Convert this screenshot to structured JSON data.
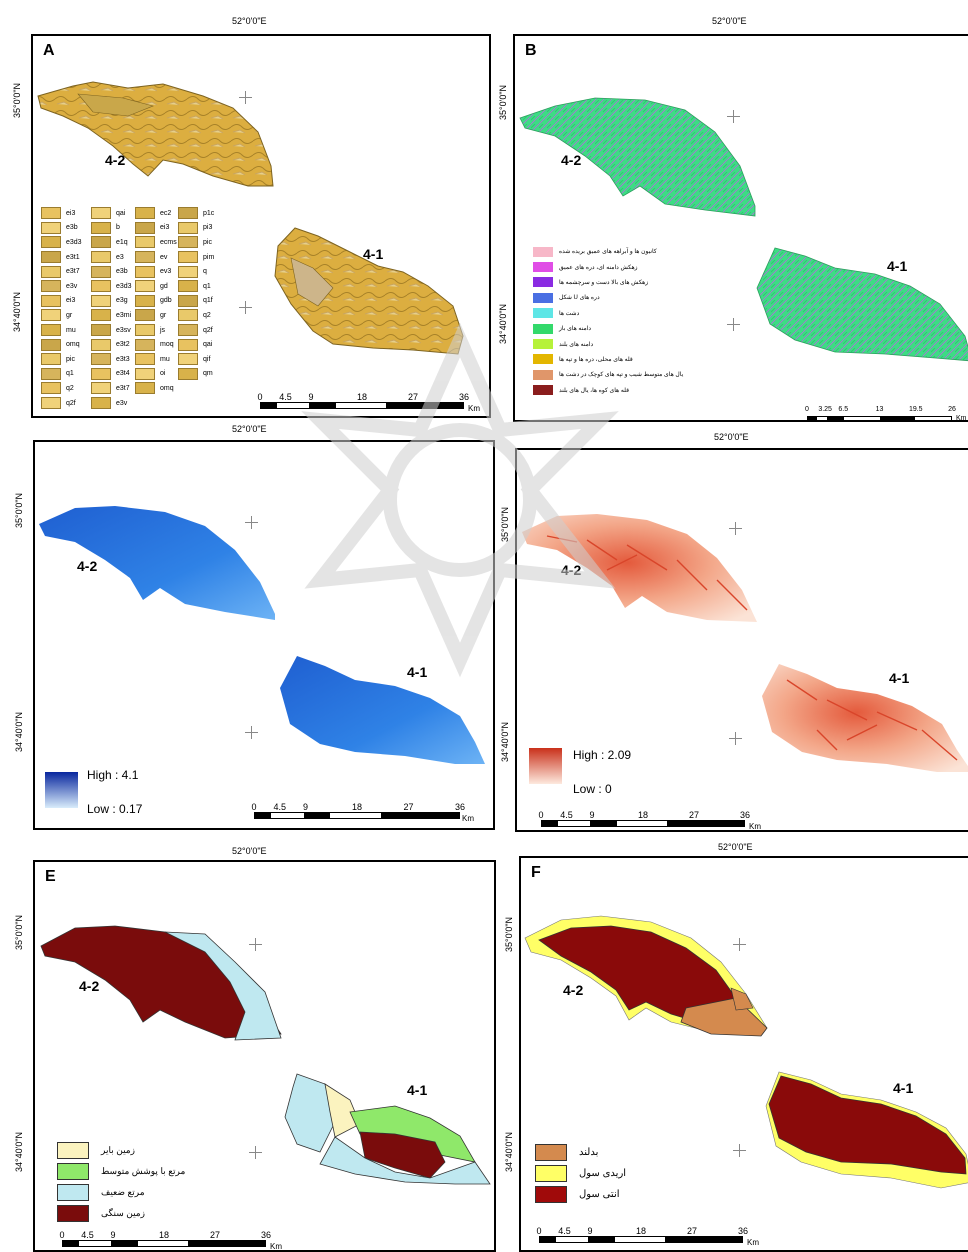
{
  "colors": {
    "geology_fill": "#d9a93a",
    "geology_line": "#8a6d1e",
    "landform_fill": "#3ddc84",
    "water_fill": "#2f7bd9",
    "fault_fill": "#f3c6b0",
    "fault_line": "#d9452a",
    "rock_land": "#7a0c0c",
    "weak_range": "#bfe8f0",
    "medium_range": "#8fe86a",
    "barren_land": "#fbf3bf",
    "entisol": "#8a0a0a",
    "aridisol": "#ffff66",
    "badland": "#d48a4e"
  },
  "axes": {
    "lon": "52°0'0\"E",
    "lat_top": "35°0'0\"N",
    "lat_bottom": "34°40'0\"N"
  },
  "zones": {
    "z42": "4-2",
    "z41": "4-1"
  },
  "panels": {
    "a": {
      "letter": "A"
    },
    "b": {
      "letter": "B"
    },
    "c": {
      "letter": ""
    },
    "d": {
      "letter": ""
    },
    "e": {
      "letter": "E"
    },
    "f": {
      "letter": "F"
    }
  },
  "scalebar_a": {
    "ticks": [
      "0",
      "4.5",
      "9",
      "18",
      "27",
      "36"
    ],
    "unit": "Km"
  },
  "scalebar_b": {
    "ticks": [
      "0",
      "3.25",
      "6.5",
      "13",
      "19.5",
      "26"
    ],
    "unit": "Km"
  },
  "geology_legend": [
    [
      "ei3",
      "e3b",
      "e3d3",
      "e3t1",
      "e3t7",
      "e3v",
      "ei3",
      "gr",
      "mu",
      "omq",
      "pic",
      "q1",
      "q2",
      "q2f"
    ],
    [
      "qai",
      "b",
      "e1q",
      "e3",
      "e3b",
      "e3d3",
      "e3g",
      "e3mi",
      "e3sv",
      "e3t2",
      "e3t3",
      "e3t4",
      "e3t7",
      "e3v"
    ],
    [
      "ec2",
      "ei3",
      "ecms",
      "ev",
      "ev3",
      "gd",
      "gdb",
      "gr",
      "js",
      "moq",
      "mu",
      "oi",
      "omq"
    ],
    [
      "p1c",
      "pi3",
      "pic",
      "pim",
      "q",
      "q1",
      "q1f",
      "q2",
      "q2f",
      "qai",
      "qif",
      "qm"
    ]
  ],
  "landform_legend": [
    {
      "label": "کانیون ها و آبراهه های عمیق بریده شده",
      "color": "#f7b7c8"
    },
    {
      "label": "زهکش دامنه ای، دره های عمیق",
      "color": "#e04de6"
    },
    {
      "label": "زهکش های بالا دست و سرچشمه ها",
      "color": "#8a2be2"
    },
    {
      "label": "شکل U دره های",
      "color": "#4a6fe3"
    },
    {
      "label": "دشت ها",
      "color": "#5ee6e6"
    },
    {
      "label": "دامنه های باز",
      "color": "#33d96b"
    },
    {
      "label": "دامنه های بلند",
      "color": "#b6f23a"
    },
    {
      "label": "قله های محلی، دره ها و تپه ها",
      "color": "#e3b600"
    },
    {
      "label": "یال های متوسط شیب و تپه های کوچک در دشت ها",
      "color": "#e0966a"
    },
    {
      "label": "قله های کوه ها، یال های بلند",
      "color": "#8a1d1d"
    }
  ],
  "water_legend": {
    "high": "High : 4.1",
    "low": "Low : 0.17"
  },
  "fault_legend": {
    "high": "High : 2.09",
    "low": "Low : 0"
  },
  "landuse_legend": [
    {
      "label": "زمین بایر",
      "color": "#fbf3bf"
    },
    {
      "label": "مرتع با پوشش متوسط",
      "color": "#8fe86a"
    },
    {
      "label": "مرتع ضعیف",
      "color": "#bfe8f0"
    },
    {
      "label": "زمین سنگی",
      "color": "#7a0c0c"
    }
  ],
  "soil_legend": [
    {
      "label": "بدلند",
      "color": "#d48a4e"
    },
    {
      "label": "اریدی سول",
      "color": "#ffff66"
    },
    {
      "label": "انتی سول",
      "color": "#a00a0a"
    }
  ]
}
